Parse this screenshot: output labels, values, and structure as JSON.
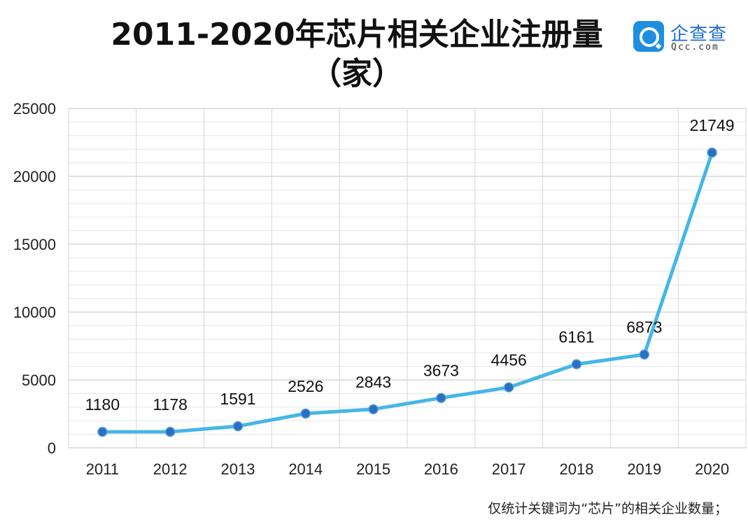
{
  "chart_data": {
    "type": "line",
    "title": "2011-2020年芯片相关企业注册量（家）",
    "categories": [
      "2011",
      "2012",
      "2013",
      "2014",
      "2015",
      "2016",
      "2017",
      "2018",
      "2019",
      "2020"
    ],
    "series": [
      {
        "values": [
          1180,
          1178,
          1591,
          2526,
          2843,
          3673,
          4456,
          6161,
          6873,
          21749
        ]
      }
    ],
    "data_labels": [
      "1180",
      "1178",
      "1591",
      "2526",
      "2843",
      "3673",
      "4456",
      "6161",
      "6873",
      "21749"
    ],
    "yticks": [
      "0",
      "5000",
      "10000",
      "15000",
      "20000",
      "25000"
    ],
    "ylim": [
      0,
      25000
    ],
    "grid": true,
    "line_color": "#45b6e6",
    "marker_color": "#2a6fc0"
  },
  "logo": {
    "name": "企查查",
    "domain": "Qcc.com"
  },
  "footnote": "仅统计关键词为“芯片”的相关企业数量；"
}
